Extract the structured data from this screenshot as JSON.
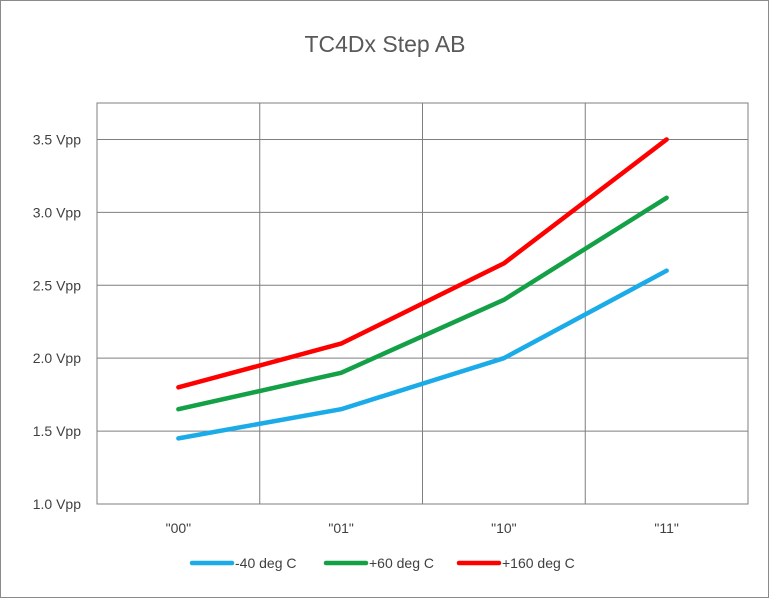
{
  "chart_data": {
    "type": "line",
    "title": "TC4Dx Step AB",
    "xlabel": "",
    "ylabel": "",
    "categories": [
      "\"00\"",
      "\"01\"",
      "\"10\"",
      "\"11\""
    ],
    "y_ticks": [
      "1.0 Vpp",
      "1.5 Vpp",
      "2.0 Vpp",
      "2.5 Vpp",
      "3.0 Vpp",
      "3.5 Vpp"
    ],
    "ylim": [
      1.0,
      3.75
    ],
    "grid": true,
    "legend_position": "bottom",
    "series": [
      {
        "name": "-40 deg C",
        "color": "#1aabe8",
        "values": [
          1.45,
          1.65,
          2.0,
          2.6
        ]
      },
      {
        "name": "+60 deg C",
        "color": "#14a046",
        "values": [
          1.65,
          1.9,
          2.4,
          3.1
        ]
      },
      {
        "name": "+160 deg C",
        "color": "#ff0000",
        "values": [
          1.8,
          2.1,
          2.65,
          3.5
        ]
      }
    ]
  }
}
